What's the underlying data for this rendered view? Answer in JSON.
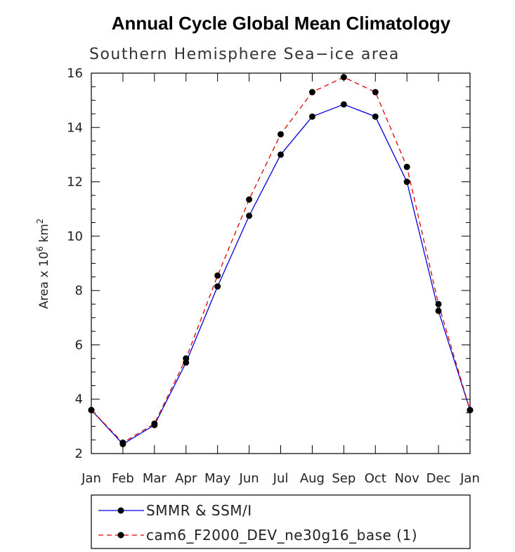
{
  "chart_data": {
    "type": "line",
    "title": "Annual Cycle Global Mean Climatology",
    "subtitle": "Southern Hemisphere Sea−ice area",
    "ylabel": "Area x 10",
    "ylabel_sup": "6",
    "ylabel_unit": "km",
    "ylabel_unit_sup": "2",
    "xlabel": "",
    "ylim": [
      2,
      16
    ],
    "yticks": [
      2,
      4,
      6,
      8,
      10,
      12,
      14,
      16
    ],
    "ytick_labels": [
      "2",
      "4",
      "6",
      "8",
      "10",
      "12",
      "14",
      "16"
    ],
    "categories": [
      "Jan",
      "Feb",
      "Mar",
      "Apr",
      "May",
      "Jun",
      "Jul",
      "Aug",
      "Sep",
      "Oct",
      "Nov",
      "Dec",
      "Jan"
    ],
    "grid": false,
    "legend_position": "bottom",
    "series": [
      {
        "name": "SMMR & SSM/I",
        "color": "#0000dd",
        "dash": "solid",
        "marker": "filled-circle",
        "values": [
          3.6,
          2.35,
          3.05,
          5.35,
          8.15,
          10.75,
          13.0,
          14.4,
          14.85,
          14.4,
          12.0,
          7.25,
          3.6
        ]
      },
      {
        "name": "cam6_F2000_DEV_ne30g16_base (1)",
        "color": "#e00000",
        "dash": "dashed",
        "marker": "filled-circle",
        "values": [
          3.6,
          2.4,
          3.1,
          5.5,
          8.55,
          11.35,
          13.75,
          15.3,
          15.85,
          15.3,
          12.55,
          7.5,
          3.6
        ]
      }
    ]
  }
}
